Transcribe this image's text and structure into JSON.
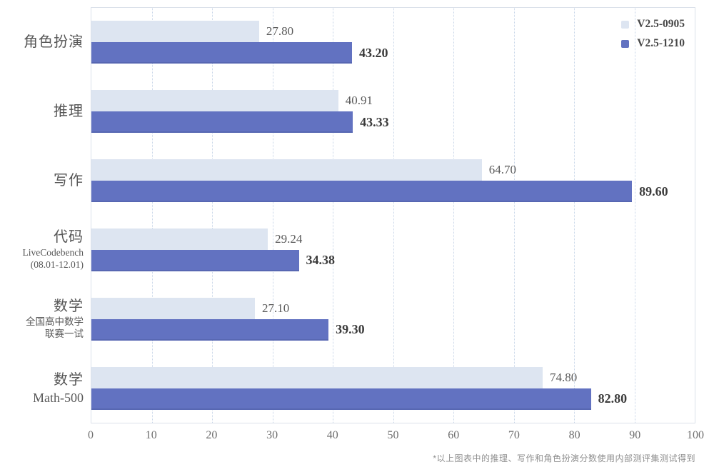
{
  "chart_data": {
    "type": "bar",
    "orientation": "horizontal",
    "title": "",
    "categories": [
      {
        "main": "角色扮演",
        "sub": []
      },
      {
        "main": "推理",
        "sub": []
      },
      {
        "main": "写作",
        "sub": []
      },
      {
        "main": "代码",
        "sub": [
          "LiveCodebench",
          "(08.01-12.01)"
        ]
      },
      {
        "main": "数学",
        "sub": [
          "全国高中数学",
          "联赛一试"
        ]
      },
      {
        "main": "数学",
        "sub": [
          "Math-500"
        ]
      }
    ],
    "series": [
      {
        "name": "V2.5-0905",
        "color": "#dde5f1",
        "values": [
          27.8,
          40.91,
          64.7,
          29.24,
          27.1,
          74.8
        ],
        "labels": [
          "27.80",
          "40.91",
          "64.70",
          "29.24",
          "27.10",
          "74.80"
        ]
      },
      {
        "name": "V2.5-1210",
        "color": "#6272c1",
        "values": [
          43.2,
          43.33,
          89.6,
          34.38,
          39.3,
          82.8
        ],
        "labels": [
          "43.20",
          "43.33",
          "89.60",
          "34.38",
          "39.30",
          "82.80"
        ]
      }
    ],
    "xlim": [
      0,
      100
    ],
    "x_ticks": [
      "0",
      "10",
      "20",
      "30",
      "40",
      "50",
      "60",
      "70",
      "80",
      "90",
      "100"
    ],
    "grid": "vertical-dotted",
    "legend_position": "top-right",
    "footnote": "*以上图表中的推理、写作和角色扮演分数使用内部测评集测试得到"
  }
}
